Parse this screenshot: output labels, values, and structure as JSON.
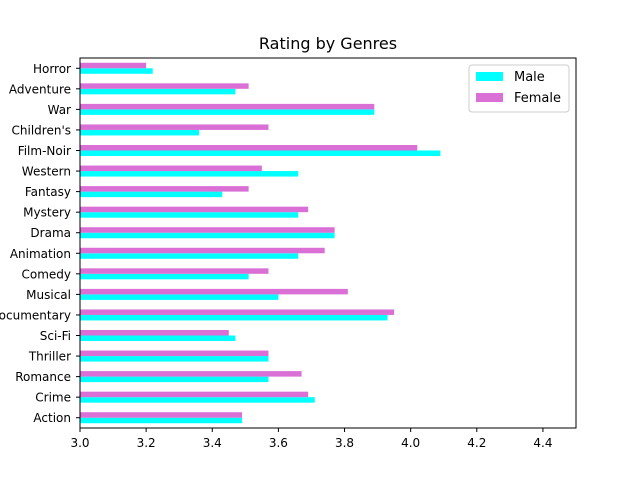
{
  "chart_data": {
    "type": "bar",
    "orientation": "horizontal",
    "title": "Rating by Genres",
    "xlabel": "",
    "ylabel": "",
    "xlim": [
      3.0,
      4.5
    ],
    "xticks": [
      "3.0",
      "3.2",
      "3.4",
      "3.6",
      "3.8",
      "4.0",
      "4.2",
      "4.4"
    ],
    "grid": false,
    "legend_position": "top-right",
    "categories": [
      "Action",
      "Crime",
      "Romance",
      "Thriller",
      "Sci-Fi",
      "Documentary",
      "Musical",
      "Comedy",
      "Animation",
      "Drama",
      "Mystery",
      "Fantasy",
      "Western",
      "Film-Noir",
      "Children's",
      "War",
      "Adventure",
      "Horror"
    ],
    "series": [
      {
        "name": "Male",
        "color": "#00FFFF",
        "values": [
          3.49,
          3.71,
          3.57,
          3.57,
          3.47,
          3.93,
          3.6,
          3.51,
          3.66,
          3.77,
          3.66,
          3.43,
          3.66,
          4.09,
          3.36,
          3.89,
          3.47,
          3.22
        ]
      },
      {
        "name": "Female",
        "color": "#DA70D6",
        "values": [
          3.49,
          3.69,
          3.67,
          3.57,
          3.45,
          3.95,
          3.81,
          3.57,
          3.74,
          3.77,
          3.69,
          3.51,
          3.55,
          4.02,
          3.57,
          3.89,
          3.51,
          3.2
        ]
      }
    ]
  }
}
